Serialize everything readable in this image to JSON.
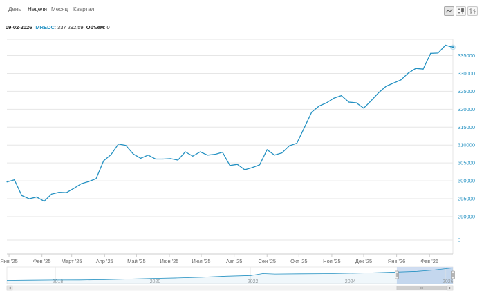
{
  "tabs": [
    {
      "label": "День",
      "active": false
    },
    {
      "label": "Неделя",
      "active": true
    },
    {
      "label": "Месяц",
      "active": false
    },
    {
      "label": "Квартал",
      "active": false
    }
  ],
  "tools": [
    {
      "icon": "area-chart-icon",
      "active": true
    },
    {
      "icon": "candlestick-icon",
      "active": false
    },
    {
      "icon": "ohlc-bars-icon",
      "active": false
    }
  ],
  "info": {
    "date": "09-02-2026",
    "ticker": "MREDC",
    "value": ": 337 292,59,",
    "volume_label": "Объём",
    "volume_value": ": 0"
  },
  "colors": {
    "line": "#2491c2",
    "grid": "#e6e6e6",
    "axis_text": "#2491c2",
    "navigator_mask": "#c8d7ef"
  },
  "chart_data": {
    "type": "line",
    "series": [
      {
        "values": [
          [
            "2024-12-30",
            299700
          ],
          [
            "2025-01-06",
            300300
          ],
          [
            "2025-01-13",
            295900
          ],
          [
            "2025-01-20",
            295000
          ],
          [
            "2025-01-27",
            295500
          ],
          [
            "2025-02-03",
            294300
          ],
          [
            "2025-02-10",
            296300
          ],
          [
            "2025-02-17",
            296800
          ],
          [
            "2025-02-24",
            296700
          ],
          [
            "2025-03-03",
            297900
          ],
          [
            "2025-03-10",
            299200
          ],
          [
            "2025-03-17",
            299800
          ],
          [
            "2025-03-24",
            300600
          ],
          [
            "2025-03-31",
            305600
          ],
          [
            "2025-04-07",
            307300
          ],
          [
            "2025-04-14",
            310300
          ],
          [
            "2025-04-21",
            309900
          ],
          [
            "2025-04-28",
            307500
          ],
          [
            "2025-05-05",
            306300
          ],
          [
            "2025-05-12",
            307200
          ],
          [
            "2025-05-19",
            306100
          ],
          [
            "2025-05-26",
            306100
          ],
          [
            "2025-06-02",
            306200
          ],
          [
            "2025-06-09",
            305800
          ],
          [
            "2025-06-16",
            308100
          ],
          [
            "2025-06-23",
            306900
          ],
          [
            "2025-06-30",
            308100
          ],
          [
            "2025-07-07",
            307200
          ],
          [
            "2025-07-14",
            307400
          ],
          [
            "2025-07-21",
            308000
          ],
          [
            "2025-07-28",
            304300
          ],
          [
            "2025-08-04",
            304600
          ],
          [
            "2025-08-11",
            303100
          ],
          [
            "2025-08-18",
            303700
          ],
          [
            "2025-08-25",
            304500
          ],
          [
            "2025-09-01",
            308700
          ],
          [
            "2025-09-08",
            307200
          ],
          [
            "2025-09-15",
            307800
          ],
          [
            "2025-09-22",
            309800
          ],
          [
            "2025-09-29",
            310500
          ],
          [
            "2025-10-06",
            314800
          ],
          [
            "2025-10-13",
            319200
          ],
          [
            "2025-10-20",
            320900
          ],
          [
            "2025-10-27",
            321800
          ],
          [
            "2025-11-03",
            323100
          ],
          [
            "2025-11-10",
            323800
          ],
          [
            "2025-11-17",
            322000
          ],
          [
            "2025-11-24",
            321800
          ],
          [
            "2025-12-01",
            320300
          ],
          [
            "2025-12-08",
            322400
          ],
          [
            "2025-12-15",
            324600
          ],
          [
            "2025-12-22",
            326400
          ],
          [
            "2025-12-29",
            327300
          ],
          [
            "2026-01-05",
            328200
          ],
          [
            "2026-01-12",
            330100
          ],
          [
            "2026-01-19",
            331400
          ],
          [
            "2026-01-26",
            331200
          ],
          [
            "2026-02-02",
            335600
          ],
          [
            "2026-02-09",
            335700
          ],
          [
            "2026-02-16",
            337900
          ],
          [
            "2026-02-23",
            337300
          ]
        ]
      }
    ],
    "yticks": [
      0,
      290000,
      295000,
      300000,
      305000,
      310000,
      315000,
      320000,
      325000,
      330000,
      335000
    ],
    "ytick_labels": [
      "0",
      "290000",
      "295000",
      "300000",
      "305000",
      "310000",
      "315000",
      "320000",
      "325000",
      "330000",
      "335000"
    ],
    "xtick_labels": [
      "Янв '25",
      "Фев '25",
      "Март '25",
      "Апр '25",
      "Май '25",
      "Июн '25",
      "Июл '25",
      "Авг '25",
      "Сен '25",
      "Окт '25",
      "Ноя '25",
      "Дек '25",
      "Янв '26",
      "Фев '26"
    ],
    "xtick_dates": [
      "2025-01-01",
      "2025-02-01",
      "2025-03-01",
      "2025-04-01",
      "2025-05-01",
      "2025-06-01",
      "2025-07-01",
      "2025-08-01",
      "2025-09-01",
      "2025-10-01",
      "2025-11-01",
      "2025-12-01",
      "2026-01-01",
      "2026-02-01"
    ],
    "xlim": [
      "2024-12-30",
      "2026-02-23"
    ],
    "grid": true,
    "legend": "none",
    "navigator": {
      "labels": [
        "2018",
        "2020",
        "2022",
        "2024",
        "2026"
      ],
      "label_dates": [
        "2018-01-01",
        "2020-01-01",
        "2022-01-01",
        "2024-01-01",
        "2026-01-01"
      ],
      "range": [
        "2017-01-01",
        "2026-02-23"
      ],
      "selected": [
        "2024-12-30",
        "2026-02-23"
      ],
      "values": [
        [
          "2017-01-01",
          222000
        ],
        [
          "2017-07-01",
          224000
        ],
        [
          "2018-01-01",
          226000
        ],
        [
          "2018-07-01",
          226500
        ],
        [
          "2019-01-01",
          229000
        ],
        [
          "2019-07-01",
          235000
        ],
        [
          "2020-01-01",
          241000
        ],
        [
          "2020-07-01",
          245000
        ],
        [
          "2021-01-01",
          252000
        ],
        [
          "2021-07-01",
          262000
        ],
        [
          "2022-01-01",
          268000
        ],
        [
          "2022-04-01",
          286000
        ],
        [
          "2022-07-01",
          282000
        ],
        [
          "2023-01-01",
          284000
        ],
        [
          "2023-07-01",
          285000
        ],
        [
          "2024-01-01",
          289000
        ],
        [
          "2024-07-01",
          293000
        ],
        [
          "2024-12-30",
          299700
        ],
        [
          "2025-06-01",
          306000
        ],
        [
          "2025-10-01",
          318000
        ],
        [
          "2026-02-23",
          337300
        ]
      ]
    }
  }
}
